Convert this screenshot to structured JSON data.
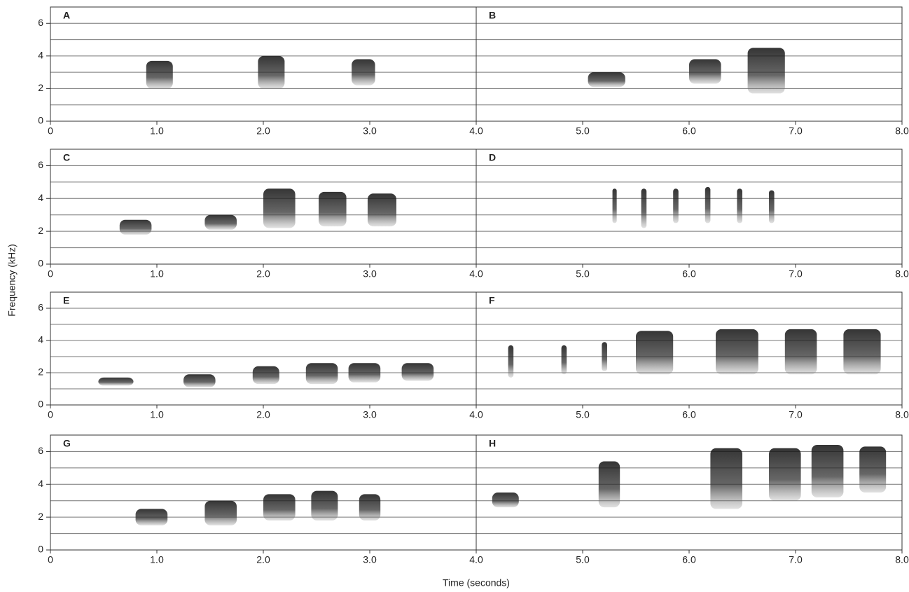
{
  "figure": {
    "xlabel": "Time (seconds)",
    "ylabel": "Frequency (kHz)"
  },
  "chart_data": [
    {
      "type": "spectrogram",
      "xlim": [
        0,
        8
      ],
      "ylim": [
        0,
        7
      ],
      "xticks": [
        0,
        {
          "value": 1,
          "label": "1.0"
        },
        {
          "value": 2,
          "label": "2.0"
        },
        {
          "value": 3,
          "label": "3.0"
        },
        {
          "value": 4,
          "label": "4.0"
        },
        {
          "value": 5,
          "label": "5.0"
        },
        {
          "value": 6,
          "label": "6.0"
        },
        {
          "value": 7,
          "label": "7.0"
        },
        {
          "value": 8,
          "label": "8.0"
        }
      ],
      "yticks": [
        0,
        2,
        4,
        6
      ],
      "ygrid": [
        1,
        2,
        3,
        4,
        5,
        6
      ],
      "divider": 4,
      "panels": [
        {
          "label": "A",
          "syllables": [
            {
              "time": [
                0.9,
                1.15
              ],
              "freq": [
                2,
                3.7
              ]
            },
            {
              "time": [
                1.95,
                2.2
              ],
              "freq": [
                2,
                4
              ]
            },
            {
              "time": [
                2.83,
                3.05
              ],
              "freq": [
                2.2,
                3.8
              ]
            }
          ]
        },
        {
          "label": "B",
          "syllables": [
            {
              "time": [
                5.05,
                5.4
              ],
              "freq": [
                2.1,
                3
              ]
            },
            {
              "time": [
                6,
                6.3
              ],
              "freq": [
                2.3,
                3.8
              ]
            },
            {
              "time": [
                6.55,
                6.9
              ],
              "freq": [
                1.7,
                4.5
              ]
            }
          ]
        }
      ]
    },
    {
      "type": "spectrogram",
      "xlim": [
        0,
        8
      ],
      "ylim": [
        0,
        7
      ],
      "xticks": [
        0,
        {
          "value": 1,
          "label": "1.0"
        },
        {
          "value": 2,
          "label": "2.0"
        },
        {
          "value": 3,
          "label": "3.0"
        },
        {
          "value": 4,
          "label": "4.0"
        },
        {
          "value": 5,
          "label": "5.0"
        },
        {
          "value": 6,
          "label": "6.0"
        },
        {
          "value": 7,
          "label": "7.0"
        },
        {
          "value": 8,
          "label": "8.0"
        }
      ],
      "yticks": [
        0,
        2,
        4,
        6
      ],
      "ygrid": [
        1,
        2,
        3,
        4,
        5,
        6
      ],
      "divider": 4,
      "panels": [
        {
          "label": "C",
          "syllables": [
            {
              "time": [
                0.65,
                0.95
              ],
              "freq": [
                1.8,
                2.7
              ]
            },
            {
              "time": [
                1.45,
                1.75
              ],
              "freq": [
                2.1,
                3
              ]
            },
            {
              "time": [
                2,
                2.3
              ],
              "freq": [
                2.2,
                4.6
              ]
            },
            {
              "time": [
                2.52,
                2.78
              ],
              "freq": [
                2.3,
                4.4
              ]
            },
            {
              "time": [
                2.98,
                3.25
              ],
              "freq": [
                2.3,
                4.3
              ]
            }
          ]
        },
        {
          "label": "D",
          "syllables": [
            {
              "time": [
                5.28,
                5.32
              ],
              "freq": [
                2.5,
                4.6
              ]
            },
            {
              "time": [
                5.55,
                5.6
              ],
              "freq": [
                2.2,
                4.6
              ]
            },
            {
              "time": [
                5.85,
                5.9
              ],
              "freq": [
                2.5,
                4.6
              ]
            },
            {
              "time": [
                6.15,
                6.2
              ],
              "freq": [
                2.5,
                4.7
              ]
            },
            {
              "time": [
                6.45,
                6.5
              ],
              "freq": [
                2.5,
                4.6
              ]
            },
            {
              "time": [
                6.75,
                6.8
              ],
              "freq": [
                2.5,
                4.5
              ]
            }
          ]
        }
      ]
    },
    {
      "type": "spectrogram",
      "xlim": [
        0,
        8
      ],
      "ylim": [
        0,
        7
      ],
      "xticks": [
        0,
        {
          "value": 1,
          "label": "1.0"
        },
        {
          "value": 2,
          "label": "2.0"
        },
        {
          "value": 3,
          "label": "3.0"
        },
        {
          "value": 4,
          "label": "4.0"
        },
        {
          "value": 5,
          "label": "5.0"
        },
        {
          "value": 6,
          "label": "6.0"
        },
        {
          "value": 7,
          "label": "7.0"
        },
        {
          "value": 8,
          "label": "8.0"
        }
      ],
      "yticks": [
        0,
        2,
        4,
        6
      ],
      "ygrid": [
        1,
        2,
        3,
        4,
        5,
        6
      ],
      "divider": 4,
      "panels": [
        {
          "label": "E",
          "syllables": [
            {
              "time": [
                0.45,
                0.78
              ],
              "freq": [
                1.2,
                1.7
              ]
            },
            {
              "time": [
                1.25,
                1.55
              ],
              "freq": [
                1.1,
                1.9
              ]
            },
            {
              "time": [
                1.9,
                2.15
              ],
              "freq": [
                1.3,
                2.4
              ]
            },
            {
              "time": [
                2.4,
                2.7
              ],
              "freq": [
                1.3,
                2.6
              ]
            },
            {
              "time": [
                2.8,
                3.1
              ],
              "freq": [
                1.4,
                2.6
              ]
            },
            {
              "time": [
                3.3,
                3.6
              ],
              "freq": [
                1.5,
                2.6
              ]
            }
          ]
        },
        {
          "label": "F",
          "syllables": [
            {
              "time": [
                4.3,
                4.35
              ],
              "freq": [
                1.7,
                3.7
              ]
            },
            {
              "time": [
                4.8,
                4.85
              ],
              "freq": [
                1.9,
                3.7
              ]
            },
            {
              "time": [
                5.18,
                5.23
              ],
              "freq": [
                2.1,
                3.9
              ]
            },
            {
              "time": [
                5.5,
                5.85
              ],
              "freq": [
                1.9,
                4.6
              ]
            },
            {
              "time": [
                6.25,
                6.65
              ],
              "freq": [
                1.9,
                4.7
              ]
            },
            {
              "time": [
                6.9,
                7.2
              ],
              "freq": [
                1.9,
                4.7
              ]
            },
            {
              "time": [
                7.45,
                7.8
              ],
              "freq": [
                1.9,
                4.7
              ]
            }
          ]
        }
      ]
    },
    {
      "type": "spectrogram",
      "xlim": [
        0,
        8
      ],
      "ylim": [
        0,
        7
      ],
      "xticks": [
        0,
        {
          "value": 1,
          "label": "1.0"
        },
        {
          "value": 2,
          "label": "2.0"
        },
        {
          "value": 3,
          "label": "3.0"
        },
        {
          "value": 4,
          "label": "4.0"
        },
        {
          "value": 5,
          "label": "5.0"
        },
        {
          "value": 6,
          "label": "6.0"
        },
        {
          "value": 7,
          "label": "7.0"
        },
        {
          "value": 8,
          "label": "8.0"
        }
      ],
      "yticks": [
        0,
        2,
        4,
        6
      ],
      "ygrid": [
        1,
        2,
        3,
        4,
        5,
        6
      ],
      "divider": 4,
      "panels": [
        {
          "label": "G",
          "syllables": [
            {
              "time": [
                0.8,
                1.1
              ],
              "freq": [
                1.5,
                2.5
              ]
            },
            {
              "time": [
                1.45,
                1.75
              ],
              "freq": [
                1.5,
                3
              ]
            },
            {
              "time": [
                2,
                2.3
              ],
              "freq": [
                1.8,
                3.4
              ]
            },
            {
              "time": [
                2.45,
                2.7
              ],
              "freq": [
                1.8,
                3.6
              ]
            },
            {
              "time": [
                2.9,
                3.1
              ],
              "freq": [
                1.8,
                3.4
              ]
            }
          ]
        },
        {
          "label": "H",
          "syllables": [
            {
              "time": [
                4.15,
                4.4
              ],
              "freq": [
                2.6,
                3.5
              ]
            },
            {
              "time": [
                5.15,
                5.35
              ],
              "freq": [
                2.6,
                5.4
              ]
            },
            {
              "time": [
                6.2,
                6.5
              ],
              "freq": [
                2.5,
                6.2
              ]
            },
            {
              "time": [
                6.75,
                7.05
              ],
              "freq": [
                3,
                6.2
              ]
            },
            {
              "time": [
                7.15,
                7.45
              ],
              "freq": [
                3.2,
                6.4
              ]
            },
            {
              "time": [
                7.6,
                7.85
              ],
              "freq": [
                3.5,
                6.3
              ]
            }
          ]
        }
      ]
    }
  ]
}
